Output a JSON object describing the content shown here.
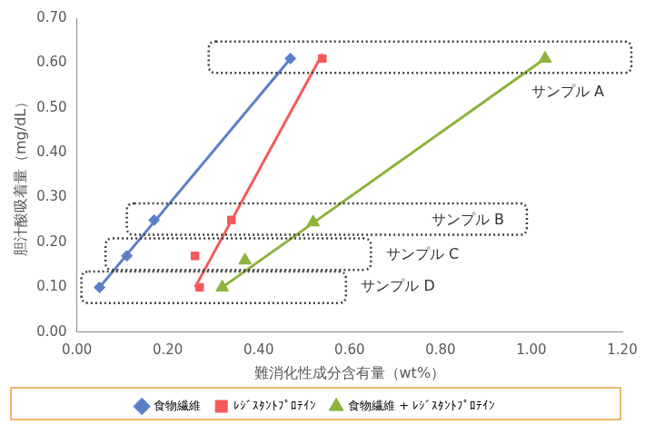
{
  "chart_data": {
    "type": "scatter",
    "x_label": "難消化性成分含有量（wt%）",
    "y_label": "胆汁酸吸着量（mg/dL）",
    "xlim": [
      0,
      1.2
    ],
    "ylim": [
      0,
      0.7
    ],
    "xticks": [
      {
        "value": 0,
        "label": "0.00"
      },
      {
        "value": 0.2,
        "label": "0.20"
      },
      {
        "value": 0.4,
        "label": "0.40"
      },
      {
        "value": 0.6,
        "label": "0.60"
      },
      {
        "value": 0.8,
        "label": "0.80"
      },
      {
        "value": 1.0,
        "label": "1.00"
      },
      {
        "value": 1.2,
        "label": "1.20"
      }
    ],
    "yticks": [
      {
        "value": 0,
        "label": "0.00"
      },
      {
        "value": 0.1,
        "label": "0.10"
      },
      {
        "value": 0.2,
        "label": "0.20"
      },
      {
        "value": 0.3,
        "label": "0.30"
      },
      {
        "value": 0.4,
        "label": "0.40"
      },
      {
        "value": 0.5,
        "label": "0.50"
      },
      {
        "value": 0.6,
        "label": "0.60"
      },
      {
        "value": 0.7,
        "label": "0.70"
      }
    ],
    "grid": false,
    "legend": "bottom",
    "series": [
      {
        "name": "食物繊維",
        "color": "#5b7fc7",
        "marker": "diamond",
        "x": [
          0.05,
          0.11,
          0.17,
          0.47
        ],
        "values": [
          0.1,
          0.17,
          0.25,
          0.61
        ],
        "trendline": {
          "x": [
            0.05,
            0.47
          ],
          "y": [
            0.1,
            0.61
          ]
        }
      },
      {
        "name": "ﾚｼﾞｽﾀﾝﾄﾌﾟﾛﾃｲﾝ",
        "color": "#f25a5a",
        "marker": "square",
        "x": [
          0.27,
          0.26,
          0.34,
          0.54
        ],
        "values": [
          0.1,
          0.17,
          0.25,
          0.61
        ],
        "trendline": {
          "x": [
            0.26,
            0.54
          ],
          "y": [
            0.1,
            0.62
          ]
        }
      },
      {
        "name": "食物繊維 + ﾚｼﾞｽﾀﾝﾄﾌﾟﾛﾃｲﾝ",
        "color": "#8db33a",
        "marker": "triangle",
        "x": [
          0.32,
          0.37,
          0.52,
          1.03
        ],
        "values": [
          0.1,
          0.16,
          0.245,
          0.61
        ],
        "trendline": {
          "x": [
            0.32,
            1.03
          ],
          "y": [
            0.1,
            0.61
          ]
        }
      }
    ],
    "annotations": [
      {
        "text": "サンプル A",
        "x": 1.0,
        "y": 0.535,
        "box": {
          "xlim": [
            0.29,
            1.22
          ],
          "ylim": [
            0.578,
            0.648
          ]
        }
      },
      {
        "text": "サンプル B",
        "x": 0.78,
        "y": 0.248,
        "box": {
          "xlim": [
            0.11,
            0.99
          ],
          "ylim": [
            0.217,
            0.287
          ]
        }
      },
      {
        "text": "サンプル C",
        "x": 0.68,
        "y": 0.172,
        "box": {
          "xlim": [
            0.063,
            0.647
          ],
          "ylim": [
            0.139,
            0.209
          ]
        }
      },
      {
        "text": "サンプル D",
        "x": 0.625,
        "y": 0.102,
        "box": {
          "xlim": [
            0.01,
            0.592
          ],
          "ylim": [
            0.065,
            0.135
          ]
        }
      }
    ]
  }
}
